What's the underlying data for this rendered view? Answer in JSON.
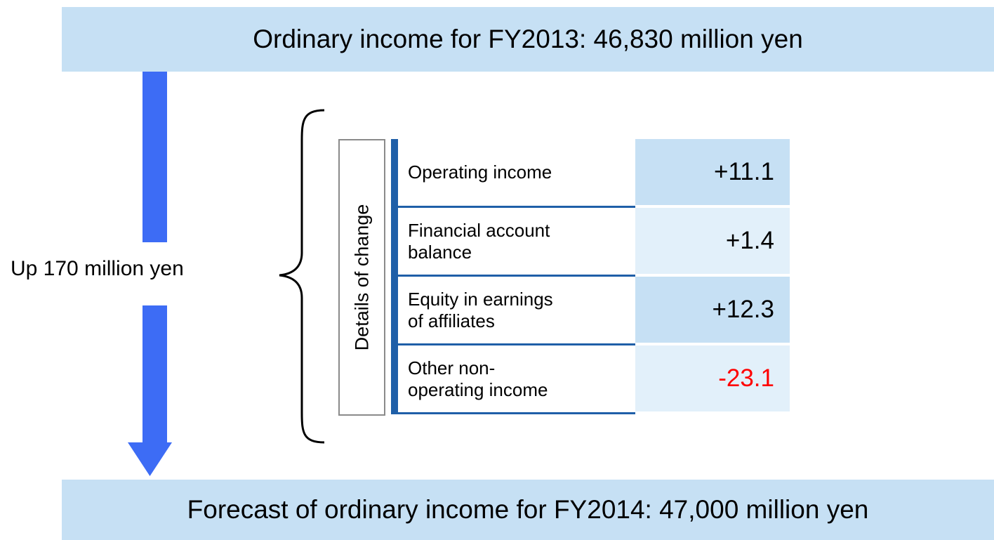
{
  "header": {
    "title": "Ordinary income for FY2013: 46,830 million yen"
  },
  "change": {
    "label": "Up 170 million yen"
  },
  "details": {
    "label": "Details of change",
    "rows": [
      {
        "label": [
          "Operating income"
        ],
        "value": "+11.1",
        "color": "#000000"
      },
      {
        "label": [
          "Financial account",
          "balance"
        ],
        "value": "+1.4",
        "color": "#000000"
      },
      {
        "label": [
          "Equity in earnings",
          "of affiliates"
        ],
        "value": "+12.3",
        "color": "#000000"
      },
      {
        "label": [
          "Other non-",
          "operating income"
        ],
        "value": "-23.1",
        "color": "#ff0000"
      }
    ]
  },
  "footer": {
    "title": "Forecast of ordinary income for FY2014: 47,000 million yen"
  }
}
